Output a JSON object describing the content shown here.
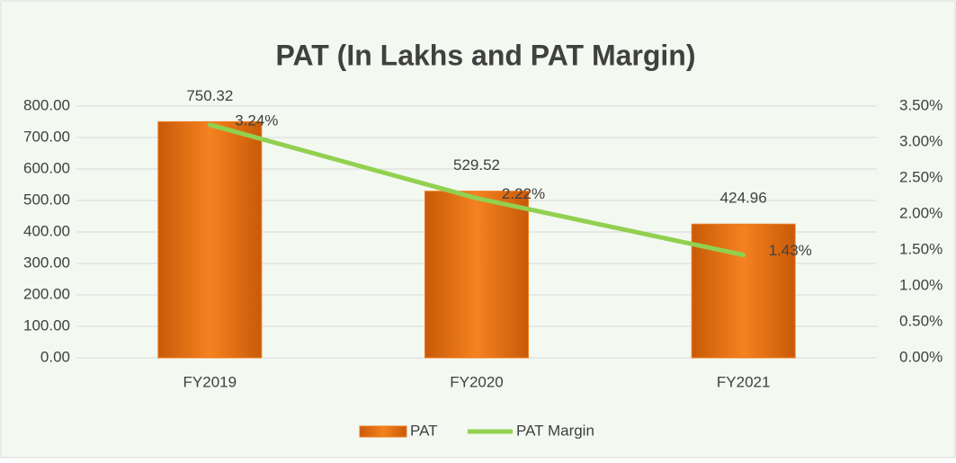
{
  "chart_data": {
    "type": "bar_line",
    "title": "PAT (In Lakhs and PAT Margin)",
    "categories": [
      "FY2019",
      "FY2020",
      "FY2021"
    ],
    "series": [
      {
        "name": "PAT",
        "type": "bar",
        "color": "#f07b1c",
        "values": [
          750.32,
          529.52,
          424.96
        ]
      },
      {
        "name": "PAT Margin",
        "type": "line",
        "axis": "y2",
        "color": "#92d050",
        "values": [
          3.24,
          2.22,
          1.43
        ],
        "value_labels": [
          "3.24%",
          "2.22%",
          "1.43%"
        ]
      }
    ],
    "ylim": [
      0,
      800
    ],
    "yticks": [
      {
        "value": 0,
        "label": "0.00"
      },
      {
        "value": 100,
        "label": "100.00"
      },
      {
        "value": 200,
        "label": "200.00"
      },
      {
        "value": 300,
        "label": "300.00"
      },
      {
        "value": 400,
        "label": "400.00"
      },
      {
        "value": 500,
        "label": "500.00"
      },
      {
        "value": 600,
        "label": "600.00"
      },
      {
        "value": 700,
        "label": "700.00"
      },
      {
        "value": 800,
        "label": "800.00"
      }
    ],
    "y2lim": [
      0,
      3.5
    ],
    "y2ticks": [
      {
        "value": 0,
        "label": "0.00%"
      },
      {
        "value": 0.5,
        "label": "0.50%"
      },
      {
        "value": 1,
        "label": "1.00%"
      },
      {
        "value": 1.5,
        "label": "1.50%"
      },
      {
        "value": 2,
        "label": "2.00%"
      },
      {
        "value": 2.5,
        "label": "2.50%"
      },
      {
        "value": 3,
        "label": "3.00%"
      },
      {
        "value": 3.5,
        "label": "3.50%"
      }
    ],
    "grid": true,
    "legend": "bottom"
  }
}
